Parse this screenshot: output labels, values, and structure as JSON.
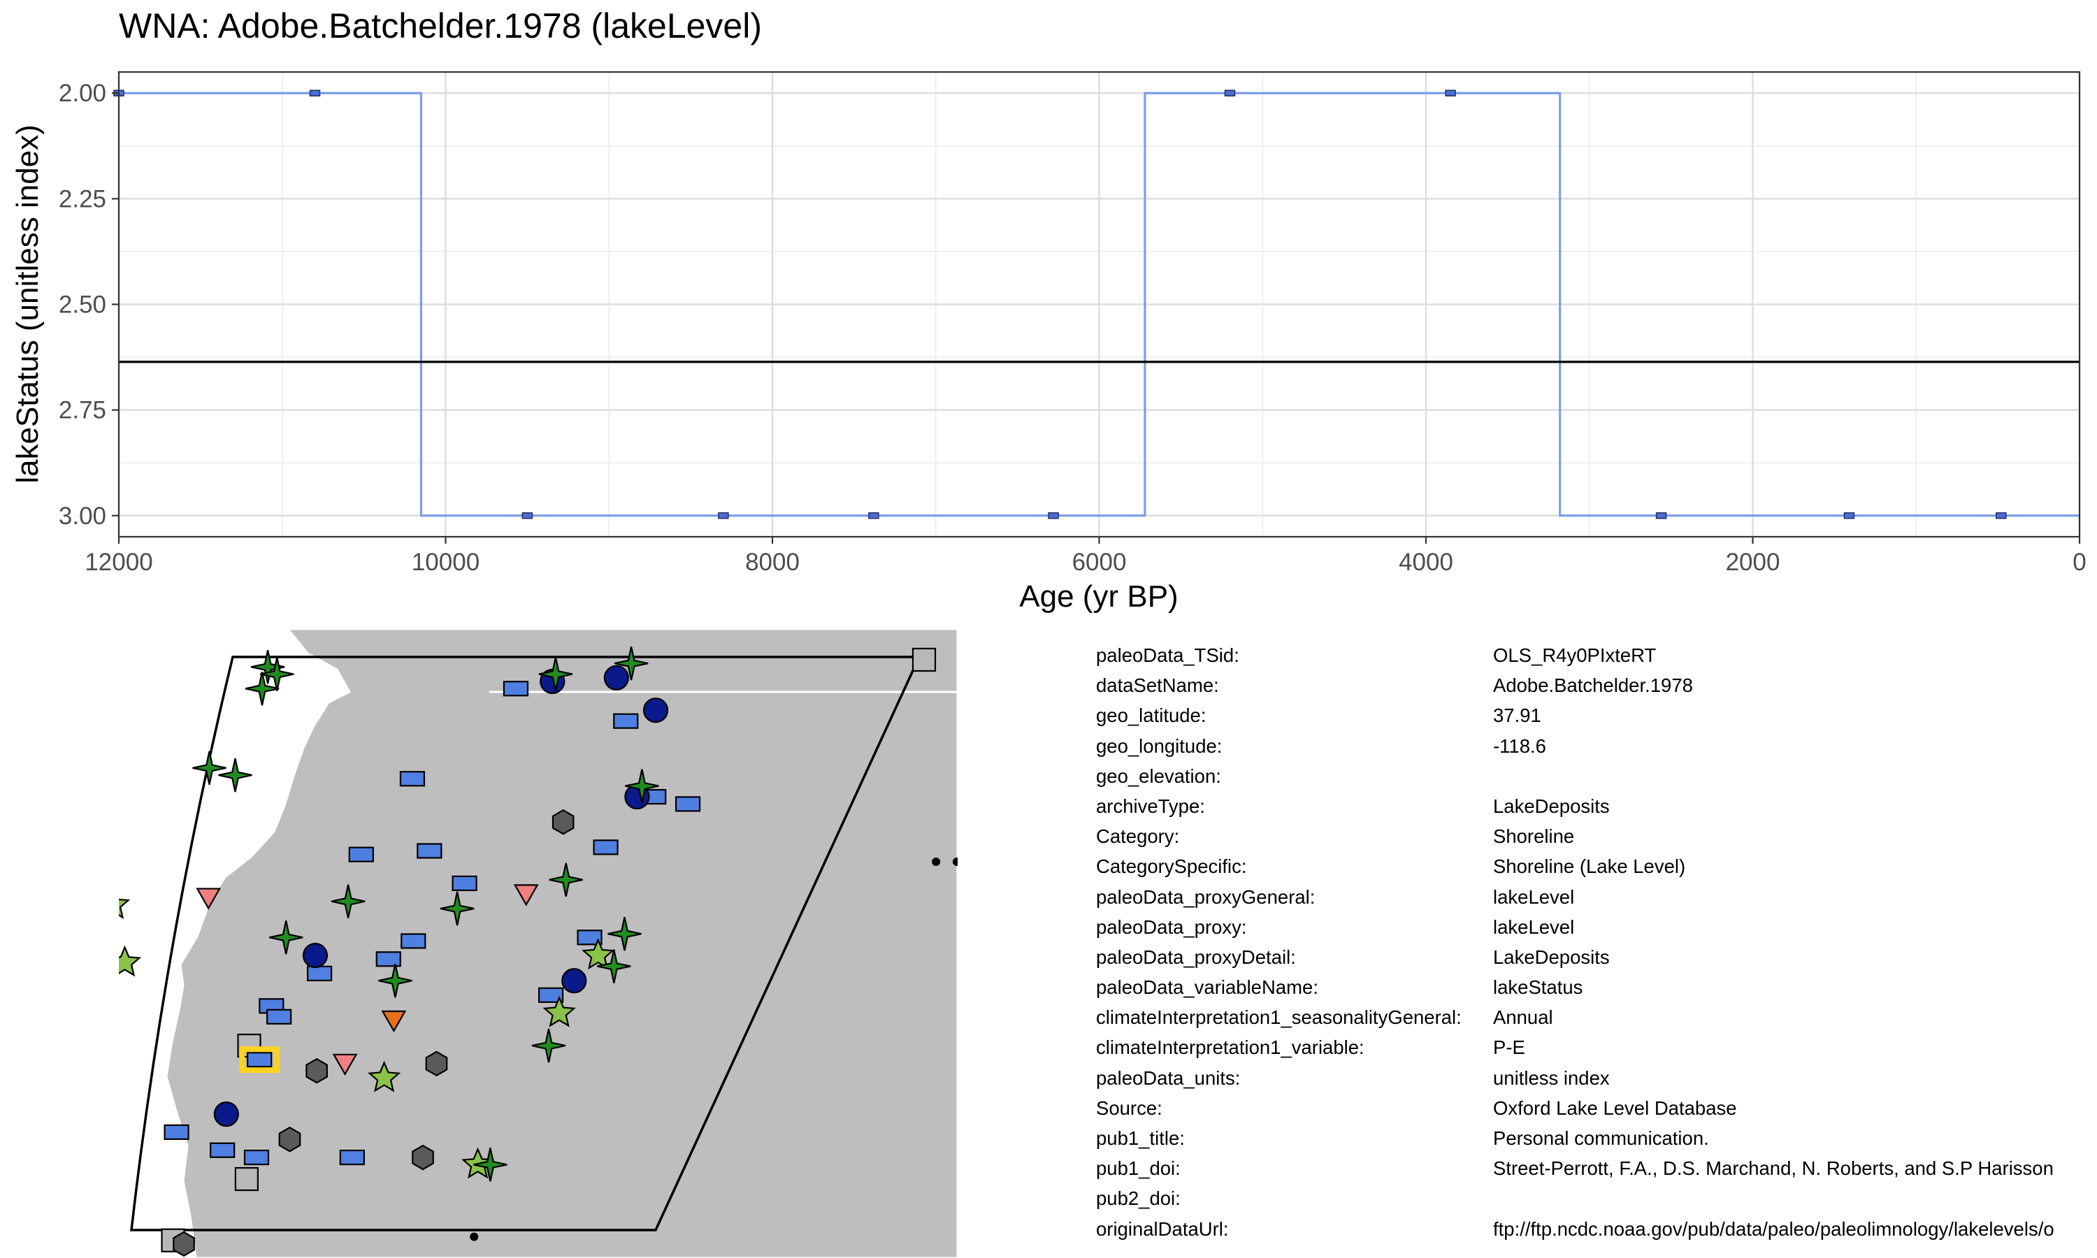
{
  "title": "WNA: Adobe.Batchelder.1978 (lakeLevel)",
  "chart_data": {
    "type": "line",
    "title": "WNA: Adobe.Batchelder.1978 (lakeLevel)",
    "xlabel": "Age (yr BP)",
    "ylabel": "lakeStatus (unitless index)",
    "x_reversed": true,
    "y_reversed": true,
    "xlim": [
      12000,
      0
    ],
    "ylim": [
      3.05,
      1.95
    ],
    "x_ticks": [
      12000,
      10000,
      8000,
      6000,
      4000,
      2000,
      0
    ],
    "x_tick_labels": [
      "12000",
      "10000",
      "8000",
      "6000",
      "4000",
      "2000",
      "0"
    ],
    "y_ticks": [
      2.0,
      2.25,
      2.5,
      2.75,
      3.0
    ],
    "y_tick_labels": [
      "2.00",
      "2.25",
      "2.50",
      "2.75",
      "3.00"
    ],
    "grid": true,
    "step_line": {
      "color": "#7b9ee6",
      "x": [
        12000,
        10150,
        10150,
        5720,
        5720,
        3180,
        3180,
        0
      ],
      "y": [
        2,
        2,
        3,
        3,
        2,
        2,
        3,
        3
      ]
    },
    "points": {
      "color": "#4a6fd1",
      "x": [
        12000,
        10800,
        9500,
        8300,
        7380,
        6280,
        5200,
        3850,
        2560,
        1410,
        480
      ],
      "y": [
        2,
        2,
        3,
        3,
        3,
        3,
        2,
        2,
        3,
        3,
        3
      ]
    },
    "mean_line": {
      "y": 2.636,
      "color": "#000000"
    }
  },
  "map": {
    "land_color": "#bebebe",
    "sites": [
      {
        "shape": "rect",
        "color": "#4f7fe0",
        "lon": -118.6,
        "lat": 37.91,
        "highlight": true
      },
      {
        "shape": "rect",
        "color": "#4f7fe0",
        "lon": -116.5,
        "lat": 48.2
      },
      {
        "shape": "rect",
        "color": "#4f7fe0",
        "lon": -113.5,
        "lat": 47.3
      },
      {
        "shape": "rect",
        "color": "#4f7fe0",
        "lon": -118.0,
        "lat": 45.7
      },
      {
        "shape": "rect",
        "color": "#4f7fe0",
        "lon": -112.0,
        "lat": 45.2
      },
      {
        "shape": "rect",
        "color": "#4f7fe0",
        "lon": -111.1,
        "lat": 45.0
      },
      {
        "shape": "rect",
        "color": "#4f7fe0",
        "lon": -118.4,
        "lat": 43.6
      },
      {
        "shape": "rect",
        "color": "#4f7fe0",
        "lon": -116.8,
        "lat": 43.7
      },
      {
        "shape": "rect",
        "color": "#4f7fe0",
        "lon": -112.6,
        "lat": 43.8
      },
      {
        "shape": "rect",
        "color": "#4f7fe0",
        "lon": -115.6,
        "lat": 42.8
      },
      {
        "shape": "rect",
        "color": "#4f7fe0",
        "lon": -116.2,
        "lat": 41.2
      },
      {
        "shape": "rect",
        "color": "#4f7fe0",
        "lon": -116.6,
        "lat": 40.7
      },
      {
        "shape": "rect",
        "color": "#4f7fe0",
        "lon": -118.1,
        "lat": 40.3
      },
      {
        "shape": "rect",
        "color": "#4f7fe0",
        "lon": -118.9,
        "lat": 39.4
      },
      {
        "shape": "rect",
        "color": "#4f7fe0",
        "lon": -118.6,
        "lat": 39.1
      },
      {
        "shape": "rect",
        "color": "#4f7fe0",
        "lon": -112.0,
        "lat": 41.3
      },
      {
        "shape": "rect",
        "color": "#4f7fe0",
        "lon": -112.3,
        "lat": 39.7
      },
      {
        "shape": "rect",
        "color": "#4f7fe0",
        "lon": -119.8,
        "lat": 35.9
      },
      {
        "shape": "rect",
        "color": "#4f7fe0",
        "lon": -118.5,
        "lat": 35.4
      },
      {
        "shape": "rect",
        "color": "#4f7fe0",
        "lon": -117.6,
        "lat": 35.2
      },
      {
        "shape": "rect",
        "color": "#4f7fe0",
        "lon": -115.3,
        "lat": 35.2
      },
      {
        "shape": "circle",
        "color": "#0a1a8a",
        "lon": -115.7,
        "lat": 48.4
      },
      {
        "shape": "circle",
        "color": "#0a1a8a",
        "lon": -114.2,
        "lat": 48.5
      },
      {
        "shape": "circle",
        "color": "#0a1a8a",
        "lon": -112.9,
        "lat": 47.6
      },
      {
        "shape": "circle",
        "color": "#0a1a8a",
        "lon": -112.4,
        "lat": 45.2
      },
      {
        "shape": "circle",
        "color": "#0a1a8a",
        "lon": -118.4,
        "lat": 40.8
      },
      {
        "shape": "circle",
        "color": "#0a1a8a",
        "lon": -111.9,
        "lat": 40.1
      },
      {
        "shape": "circle",
        "color": "#0a1a8a",
        "lon": -118.8,
        "lat": 36.4
      },
      {
        "shape": "star4",
        "color": "#228b22",
        "lon": -122.7,
        "lat": 48.8
      },
      {
        "shape": "star4",
        "color": "#228b22",
        "lon": -122.4,
        "lat": 48.6
      },
      {
        "shape": "star4",
        "color": "#228b22",
        "lon": -122.6,
        "lat": 48.2
      },
      {
        "shape": "star4",
        "color": "#228b22",
        "lon": -115.7,
        "lat": 48.6
      },
      {
        "shape": "star4",
        "color": "#228b22",
        "lon": -114.0,
        "lat": 48.9
      },
      {
        "shape": "star4",
        "color": "#228b22",
        "lon": -123.0,
        "lat": 46.0
      },
      {
        "shape": "star4",
        "color": "#228b22",
        "lon": -122.3,
        "lat": 45.8
      },
      {
        "shape": "star4",
        "color": "#228b22",
        "lon": -112.4,
        "lat": 45.5
      },
      {
        "shape": "star4",
        "color": "#228b22",
        "lon": -113.2,
        "lat": 42.9
      },
      {
        "shape": "star4",
        "color": "#228b22",
        "lon": -118.2,
        "lat": 42.3
      },
      {
        "shape": "star4",
        "color": "#228b22",
        "lon": -115.5,
        "lat": 42.1
      },
      {
        "shape": "star4",
        "color": "#228b22",
        "lon": -119.3,
        "lat": 41.3
      },
      {
        "shape": "star4",
        "color": "#228b22",
        "lon": -116.2,
        "lat": 40.1
      },
      {
        "shape": "star4",
        "color": "#228b22",
        "lon": -111.2,
        "lat": 41.4
      },
      {
        "shape": "star4",
        "color": "#228b22",
        "lon": -111.1,
        "lat": 40.5
      },
      {
        "shape": "star4",
        "color": "#228b22",
        "lon": -111.8,
        "lat": 38.3
      },
      {
        "shape": "star4",
        "color": "#228b22",
        "lon": -111.9,
        "lat": 35.0
      },
      {
        "shape": "star5",
        "color": "#8bc34a",
        "lon": -123.8,
        "lat": 42.2
      },
      {
        "shape": "star5",
        "color": "#8bc34a",
        "lon": -122.9,
        "lat": 40.6
      },
      {
        "shape": "star5",
        "color": "#8bc34a",
        "lon": -111.6,
        "lat": 40.8
      },
      {
        "shape": "star5",
        "color": "#8bc34a",
        "lon": -111.9,
        "lat": 39.2
      },
      {
        "shape": "star5",
        "color": "#8bc34a",
        "lon": -115.4,
        "lat": 37.4
      },
      {
        "shape": "star5",
        "color": "#8bc34a",
        "lon": -112.2,
        "lat": 35.0
      },
      {
        "shape": "hex",
        "color": "#5a5a5a",
        "lon": -113.9,
        "lat": 44.5
      },
      {
        "shape": "hex",
        "color": "#5a5a5a",
        "lon": -117.1,
        "lat": 37.6
      },
      {
        "shape": "hex",
        "color": "#5a5a5a",
        "lon": -114.3,
        "lat": 37.8
      },
      {
        "shape": "hex",
        "color": "#5a5a5a",
        "lon": -117.0,
        "lat": 35.7
      },
      {
        "shape": "hex",
        "color": "#5a5a5a",
        "lon": -113.6,
        "lat": 35.2
      },
      {
        "shape": "hex",
        "color": "#5a5a5a",
        "lon": -118.4,
        "lat": 32.8
      },
      {
        "shape": "tri",
        "color": "#f08080",
        "lon": -121.6,
        "lat": 42.4
      },
      {
        "shape": "tri",
        "color": "#f08080",
        "lon": -114.0,
        "lat": 42.5
      },
      {
        "shape": "tri",
        "color": "#f08080",
        "lon": -116.5,
        "lat": 37.8
      },
      {
        "shape": "tri",
        "color": "#e8701a",
        "lon": -115.8,
        "lat": 39.0
      },
      {
        "shape": "square",
        "color": "#b8b8b8",
        "lon": -119.0,
        "lat": 38.3
      },
      {
        "shape": "square",
        "color": "#b8b8b8",
        "lon": -117.6,
        "lat": 34.6
      },
      {
        "shape": "square",
        "color": "#b8b8b8",
        "lon": -121.0,
        "lat": 33.2
      },
      {
        "shape": "square",
        "color": "#b8b8b8",
        "lon": -118.7,
        "lat": 32.9
      },
      {
        "shape": "square",
        "color": "#b8b8b8",
        "lon": -107.0,
        "lat": 49.0
      },
      {
        "shape": "dot",
        "color": "#000000",
        "lon": -113.8,
        "lat": 51.0
      },
      {
        "shape": "dot",
        "color": "#000000",
        "lon": -113.4,
        "lat": 51.0
      },
      {
        "shape": "dot",
        "color": "#000000",
        "lon": -104.5,
        "lat": 43.4
      },
      {
        "shape": "dot",
        "color": "#000000",
        "lon": -104.0,
        "lat": 43.4
      },
      {
        "shape": "dot",
        "color": "#000000",
        "lon": -103.4,
        "lat": 43.2
      },
      {
        "shape": "dot",
        "color": "#000000",
        "lon": -119.6,
        "lat": 32.2
      },
      {
        "shape": "dot",
        "color": "#000000",
        "lon": -119.2,
        "lat": 32.2
      },
      {
        "shape": "dot",
        "color": "#000000",
        "lon": -118.4,
        "lat": 32.0
      },
      {
        "shape": "dot",
        "color": "#000000",
        "lon": -111.5,
        "lat": 33.0
      },
      {
        "shape": "dot",
        "color": "#000000",
        "lon": -110.7,
        "lat": 32.2
      }
    ]
  },
  "metadata": [
    {
      "key": "paleoData_TSid:",
      "value": "OLS_R4y0PIxteRT"
    },
    {
      "key": "dataSetName:",
      "value": "Adobe.Batchelder.1978"
    },
    {
      "key": "geo_latitude:",
      "value": "37.91"
    },
    {
      "key": "geo_longitude:",
      "value": "-118.6"
    },
    {
      "key": "geo_elevation:",
      "value": ""
    },
    {
      "key": "archiveType:",
      "value": "LakeDeposits"
    },
    {
      "key": "Category:",
      "value": "Shoreline"
    },
    {
      "key": "CategorySpecific:",
      "value": "Shoreline (Lake Level)"
    },
    {
      "key": "paleoData_proxyGeneral:",
      "value": "lakeLevel"
    },
    {
      "key": "paleoData_proxy:",
      "value": "lakeLevel"
    },
    {
      "key": "paleoData_proxyDetail:",
      "value": "LakeDeposits"
    },
    {
      "key": "paleoData_variableName:",
      "value": "lakeStatus"
    },
    {
      "key": "climateInterpretation1_seasonalityGeneral:",
      "value": "Annual"
    },
    {
      "key": "climateInterpretation1_variable:",
      "value": "P-E"
    },
    {
      "key": "paleoData_units:",
      "value": "unitless index"
    },
    {
      "key": "Source:",
      "value": "Oxford Lake Level Database"
    },
    {
      "key": "pub1_title:",
      "value": "Personal communication."
    },
    {
      "key": "pub1_doi:",
      "value": "Street-Perrott, F.A., D.S. Marchand, N. Roberts, and S.P Harisson"
    },
    {
      "key": "pub2_doi:",
      "value": ""
    },
    {
      "key": "originalDataUrl:",
      "value": "ftp://ftp.ncdc.noaa.gov/pub/data/paleo/paleolimnology/lakelevels/o"
    }
  ]
}
